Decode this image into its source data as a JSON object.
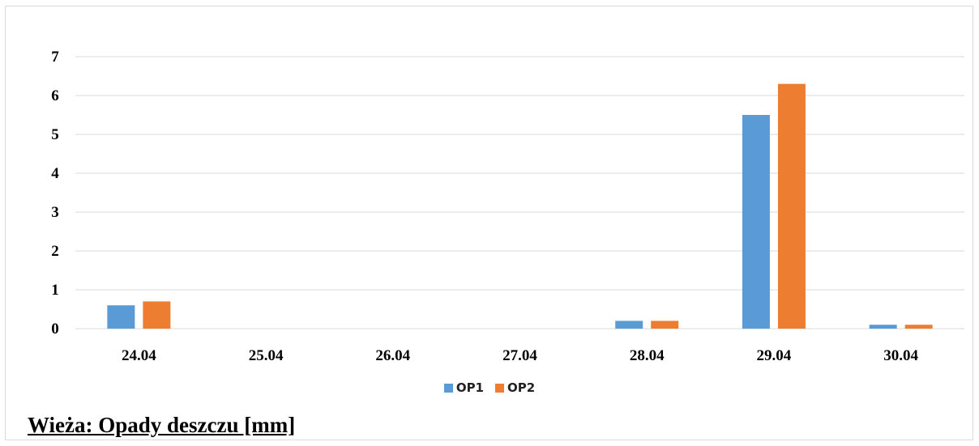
{
  "chart_data": {
    "type": "bar",
    "categories": [
      "24.04",
      "25.04",
      "26.04",
      "27.04",
      "28.04",
      "29.04",
      "30.04"
    ],
    "series": [
      {
        "name": "OP1",
        "color": "#5b9bd5",
        "values": [
          0.6,
          0,
          0,
          0,
          0.2,
          5.5,
          0.1
        ]
      },
      {
        "name": "OP2",
        "color": "#ed7d31",
        "values": [
          0.7,
          0,
          0,
          0,
          0.2,
          6.3,
          0.1
        ]
      }
    ],
    "yticks": [
      "0",
      "1",
      "2",
      "3",
      "4",
      "5",
      "6",
      "7"
    ],
    "ylim": [
      0,
      7
    ],
    "grid": true,
    "legend_position": "bottom",
    "caption": "Wieża: Opady deszczu [mm]"
  }
}
